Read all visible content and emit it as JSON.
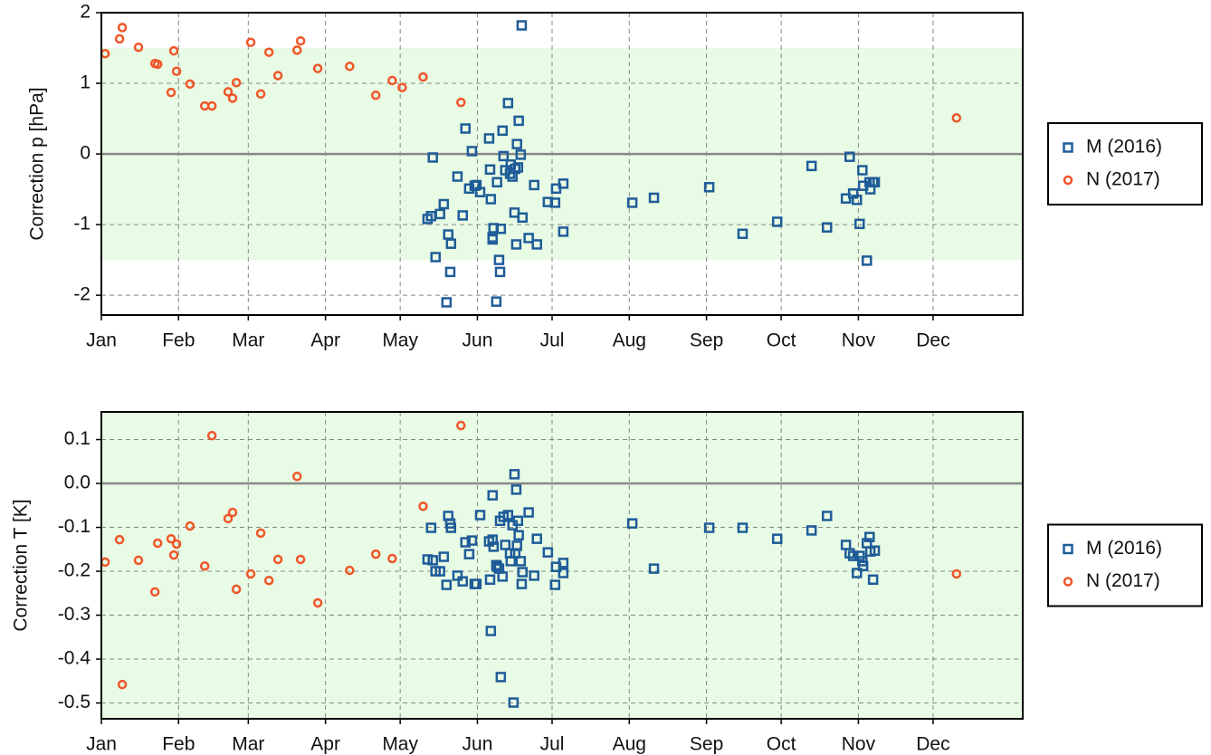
{
  "chart_data": [
    {
      "type": "scatter",
      "ylabel": "Correction p [hPa]",
      "xlim": [
        0,
        370
      ],
      "xticks": [
        {
          "value": 0,
          "label": "Jan"
        },
        {
          "value": 31,
          "label": "Feb"
        },
        {
          "value": 59,
          "label": "Mar"
        },
        {
          "value": 90,
          "label": "Apr"
        },
        {
          "value": 120,
          "label": "May"
        },
        {
          "value": 151,
          "label": "Jun"
        },
        {
          "value": 181,
          "label": "Jul"
        },
        {
          "value": 212,
          "label": "Aug"
        },
        {
          "value": 243,
          "label": "Sep"
        },
        {
          "value": 273,
          "label": "Oct"
        },
        {
          "value": 304,
          "label": "Nov"
        },
        {
          "value": 334,
          "label": "Dec"
        }
      ],
      "ylim": [
        -2.28,
        2
      ],
      "yticks": [
        -2,
        -1,
        0,
        1,
        2
      ],
      "grid": true,
      "zero_line": true,
      "band": [
        -1.5,
        1.5
      ],
      "band_color": "#e8fbe4",
      "legend": "right",
      "series": [
        {
          "name": "M (2016)",
          "color": "#1f5c99",
          "marker": "square",
          "x": [
            131.0,
            132.4,
            133.1,
            134.2,
            136.0,
            137.5,
            138.6,
            139.3,
            140.4,
            140.1,
            143.0,
            145.1,
            146.2,
            147.7,
            148.8,
            149.9,
            150.6,
            152.1,
            155.7,
            156.1,
            156.4,
            157.1,
            157.1,
            157.5,
            158.6,
            158.9,
            159.7,
            160.1,
            160.4,
            161.1,
            161.5,
            162.2,
            163.3,
            164.1,
            164.4,
            165.1,
            165.9,
            166.2,
            166.6,
            166.9,
            167.3,
            167.6,
            168.4,
            169.1,
            168.8,
            171.6,
            173.8,
            174.9,
            179.3,
            182.2,
            182.6,
            185.5,
            185.5,
            213.2,
            221.9,
            244.1,
            257.5,
            271.4,
            285.2,
            291.4,
            299.0,
            300.5,
            301.9,
            303.4,
            304.5,
            305.6,
            305.9,
            307.4,
            308.5,
            308.8,
            309.9,
            310.6
          ],
          "values": [
            -0.92,
            -0.88,
            -0.05,
            -1.46,
            -0.85,
            -0.71,
            -2.1,
            -1.14,
            -1.27,
            -1.67,
            -0.32,
            -0.87,
            0.36,
            -0.49,
            0.04,
            -0.45,
            -0.44,
            -0.54,
            0.22,
            -0.22,
            -0.64,
            -1.18,
            -1.21,
            -1.05,
            -2.09,
            -0.4,
            -1.5,
            -1.67,
            -1.06,
            0.33,
            -0.03,
            -0.23,
            0.72,
            -0.28,
            -0.15,
            -0.32,
            -0.83,
            -0.21,
            -1.28,
            0.14,
            -0.19,
            0.47,
            -0.01,
            -0.9,
            1.82,
            -1.19,
            -0.44,
            -1.28,
            -0.68,
            -0.69,
            -0.49,
            -0.42,
            -1.1,
            -0.69,
            -0.62,
            -0.47,
            -1.13,
            -0.96,
            -0.17,
            -1.04,
            -0.63,
            -0.04,
            -0.56,
            -0.65,
            -0.99,
            -0.23,
            -0.45,
            -1.51,
            -0.4,
            -0.5,
            -0.4,
            -0.4
          ]
        },
        {
          "name": "N (2017)",
          "color": "#f0562a",
          "marker": "circle",
          "x": [
            1.5,
            7.3,
            8.4,
            14.9,
            21.5,
            22.6,
            28.0,
            29.1,
            30.2,
            35.6,
            41.5,
            44.4,
            50.9,
            52.7,
            54.2,
            60.0,
            64.0,
            67.3,
            70.9,
            78.6,
            80.0,
            86.9,
            99.7,
            110.2,
            116.8,
            120.8,
            129.2,
            144.4,
            343.4
          ],
          "values": [
            1.42,
            1.63,
            1.79,
            1.51,
            1.28,
            1.27,
            0.87,
            1.46,
            1.17,
            0.99,
            0.68,
            0.68,
            0.88,
            0.79,
            1.01,
            1.58,
            0.85,
            1.44,
            1.11,
            1.47,
            1.6,
            1.21,
            1.24,
            0.83,
            1.04,
            0.94,
            1.09,
            0.73,
            0.51
          ]
        }
      ]
    },
    {
      "type": "scatter",
      "ylabel": "Correction T [K]",
      "xlim": [
        0,
        370
      ],
      "xticks": [
        {
          "value": 0,
          "label": "Jan"
        },
        {
          "value": 31,
          "label": "Feb"
        },
        {
          "value": 59,
          "label": "Mar"
        },
        {
          "value": 90,
          "label": "Apr"
        },
        {
          "value": 120,
          "label": "May"
        },
        {
          "value": 151,
          "label": "Jun"
        },
        {
          "value": 181,
          "label": "Jul"
        },
        {
          "value": 212,
          "label": "Aug"
        },
        {
          "value": 243,
          "label": "Sep"
        },
        {
          "value": 273,
          "label": "Oct"
        },
        {
          "value": 304,
          "label": "Nov"
        },
        {
          "value": 334,
          "label": "Dec"
        }
      ],
      "ylim": [
        -0.536,
        0.163
      ],
      "yticks": [
        -0.5,
        -0.4,
        -0.3,
        -0.2,
        -0.1,
        {
          "value": 0,
          "label": "0.0"
        },
        0.1
      ],
      "grid": true,
      "zero_line": true,
      "background": "#e8fbe4",
      "legend": "right",
      "series": [
        {
          "name": "M (2016)",
          "color": "#1f5c99",
          "marker": "square",
          "x": [
            131.0,
            132.4,
            133.1,
            134.2,
            136.0,
            137.5,
            138.6,
            139.3,
            140.4,
            140.1,
            143.0,
            145.1,
            146.2,
            147.7,
            148.8,
            149.9,
            150.6,
            152.1,
            155.7,
            156.1,
            156.4,
            157.1,
            157.1,
            157.5,
            158.6,
            158.9,
            159.7,
            160.1,
            160.4,
            161.1,
            161.5,
            162.2,
            163.3,
            164.1,
            164.4,
            165.1,
            165.9,
            166.2,
            166.6,
            166.9,
            167.3,
            167.6,
            168.4,
            168.8,
            169.1,
            171.6,
            173.8,
            174.9,
            179.3,
            182.2,
            182.6,
            185.5,
            185.5,
            213.2,
            221.9,
            244.1,
            257.5,
            271.4,
            285.2,
            291.4,
            299.0,
            300.5,
            301.9,
            303.4,
            304.5,
            305.6,
            305.9,
            307.4,
            308.5,
            308.8,
            309.9,
            310.6,
            165.5
          ],
          "values": [
            -0.173,
            -0.101,
            -0.175,
            -0.2,
            -0.2,
            -0.167,
            -0.231,
            -0.074,
            -0.101,
            -0.091,
            -0.21,
            -0.223,
            -0.134,
            -0.161,
            -0.13,
            -0.229,
            -0.229,
            -0.072,
            -0.132,
            -0.219,
            -0.336,
            -0.027,
            -0.128,
            -0.144,
            -0.186,
            -0.19,
            -0.194,
            -0.085,
            -0.441,
            -0.212,
            -0.076,
            -0.14,
            -0.072,
            -0.159,
            -0.177,
            -0.095,
            0.021,
            -0.159,
            -0.014,
            -0.142,
            -0.085,
            -0.118,
            -0.177,
            -0.229,
            -0.202,
            -0.066,
            -0.21,
            -0.126,
            -0.157,
            -0.231,
            -0.19,
            -0.181,
            -0.204,
            -0.091,
            -0.194,
            -0.101,
            -0.101,
            -0.126,
            -0.107,
            -0.074,
            -0.14,
            -0.159,
            -0.165,
            -0.204,
            -0.165,
            -0.177,
            -0.188,
            -0.136,
            -0.122,
            -0.155,
            -0.219,
            -0.153,
            -0.499
          ]
        },
        {
          "name": "N (2017)",
          "color": "#f0562a",
          "marker": "circle",
          "x": [
            1.5,
            7.3,
            8.4,
            14.9,
            21.5,
            22.6,
            28.0,
            29.1,
            30.2,
            35.6,
            41.5,
            44.4,
            50.9,
            52.7,
            54.2,
            60.0,
            64.0,
            67.3,
            70.9,
            78.6,
            80.0,
            86.9,
            99.7,
            110.2,
            116.8,
            129.2,
            144.4,
            343.4
          ],
          "values": [
            -0.179,
            -0.128,
            -0.458,
            -0.175,
            -0.247,
            -0.136,
            -0.126,
            -0.163,
            -0.138,
            -0.097,
            -0.188,
            0.109,
            -0.08,
            -0.066,
            -0.241,
            -0.206,
            -0.113,
            -0.221,
            -0.173,
            0.016,
            -0.173,
            -0.272,
            -0.198,
            -0.161,
            -0.171,
            -0.052,
            0.132,
            -0.206
          ]
        }
      ]
    }
  ]
}
